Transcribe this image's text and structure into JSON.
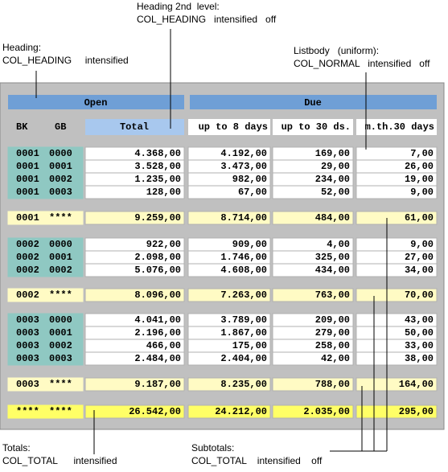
{
  "annotations": {
    "heading_2nd_level": [
      "Heading 2nd  level:",
      "COL_HEADING   intensified   off"
    ],
    "heading": [
      "Heading:",
      "COL_HEADING     intensified"
    ],
    "listbody": [
      "Listbody   (uniform):",
      "COL_NORMAL   intensified   off"
    ],
    "totals": [
      "Totals:",
      "COL_TOTAL      intensified"
    ],
    "subtotals": [
      "Subtotals:",
      "COL_TOTAL    intensified    off"
    ]
  },
  "table": {
    "header_top": [
      "Open",
      "Due"
    ],
    "header": [
      "BK",
      "GB",
      "Total",
      "up to 8 days",
      "up to 30 ds.",
      "m.th.30 days"
    ],
    "groups": [
      {
        "rows": [
          [
            "0001",
            "0000",
            "4.368,00",
            "4.192,00",
            "169,00",
            "7,00"
          ],
          [
            "0001",
            "0001",
            "3.528,00",
            "3.473,00",
            "29,00",
            "26,00"
          ],
          [
            "0001",
            "0002",
            "1.235,00",
            "982,00",
            "234,00",
            "19,00"
          ],
          [
            "0001",
            "0003",
            "128,00",
            "67,00",
            "52,00",
            "9,00"
          ]
        ],
        "subtotal": [
          "0001",
          "****",
          "9.259,00",
          "8.714,00",
          "484,00",
          "61,00"
        ]
      },
      {
        "rows": [
          [
            "0002",
            "0000",
            "922,00",
            "909,00",
            "4,00",
            "9,00"
          ],
          [
            "0002",
            "0001",
            "2.098,00",
            "1.746,00",
            "325,00",
            "27,00"
          ],
          [
            "0002",
            "0002",
            "5.076,00",
            "4.608,00",
            "434,00",
            "34,00"
          ]
        ],
        "subtotal": [
          "0002",
          "****",
          "8.096,00",
          "7.263,00",
          "763,00",
          "70,00"
        ]
      },
      {
        "rows": [
          [
            "0003",
            "0000",
            "4.041,00",
            "3.789,00",
            "209,00",
            "43,00"
          ],
          [
            "0003",
            "0001",
            "2.196,00",
            "1.867,00",
            "279,00",
            "50,00"
          ],
          [
            "0003",
            "0002",
            "466,00",
            "175,00",
            "258,00",
            "33,00"
          ],
          [
            "0003",
            "0003",
            "2.484,00",
            "2.404,00",
            "42,00",
            "38,00"
          ]
        ],
        "subtotal": [
          "0003",
          "****",
          "9.187,00",
          "8.235,00",
          "788,00",
          "164,00"
        ]
      }
    ],
    "total": [
      "****",
      "****",
      "26.542,00",
      "24.212,00",
      "2.035,00",
      "295,00"
    ]
  }
}
